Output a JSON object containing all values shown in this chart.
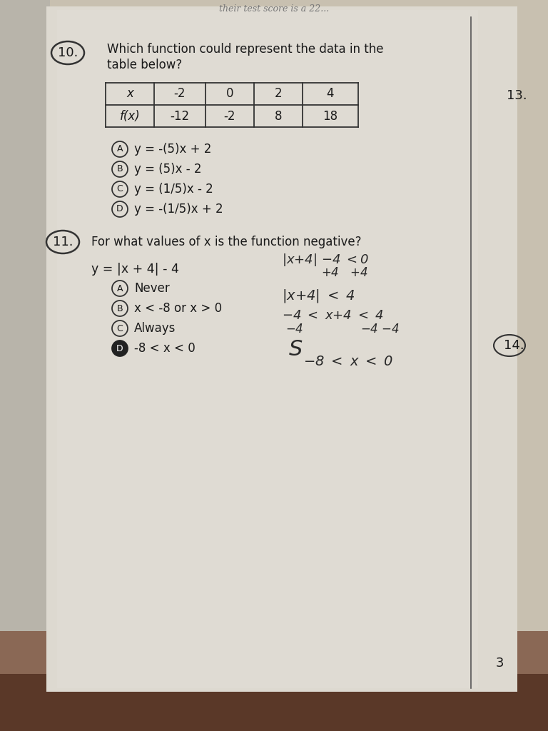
{
  "bg_top": "#b8b0a0",
  "bg_bottom": "#6b4c3b",
  "paper_color": "#ddd9d0",
  "paper_light": "#e8e4dc",
  "text_color": "#1a1a1a",
  "line_color": "#444444",
  "hw_color": "#2a2a2a",
  "top_text": "their test score is a 22...",
  "q10_label": "10.",
  "q10_line1": "Which function could represent the data in the",
  "q10_line2": "table below?",
  "table_x_vals": [
    "x",
    "-2",
    "0",
    "2",
    "4"
  ],
  "table_fx_vals": [
    "f(x)",
    "-12",
    "-2",
    "8",
    "18"
  ],
  "opt10_A": "y = -(5)x + 2",
  "opt10_B": "y = (5)x - 2",
  "opt10_C": "y = (1/5)x - 2",
  "opt10_D": "y = -(1/5)x + 2",
  "q11_label": "11.",
  "q11_text": "For what values of x is the function negative?",
  "q11_func": "y = |x + 4| - 4",
  "hw1": "|x+4| -4 <0",
  "hw2": "         +4   +4",
  "hw3": "|x+4| < 4",
  "hw4": "-4 < x+4 < 4",
  "hw5": "-4          -4  -4",
  "hw6_curly": "S",
  "hw7": "  -8 < x < 0",
  "opt11_A": "Never",
  "opt11_B": "x < -8 or x > 0",
  "opt11_C": "Always",
  "opt11_D": "-8 < x < 0",
  "opt11_answer": "D",
  "right_label_13": "13.",
  "right_label_14": "14.",
  "page_num": "3"
}
